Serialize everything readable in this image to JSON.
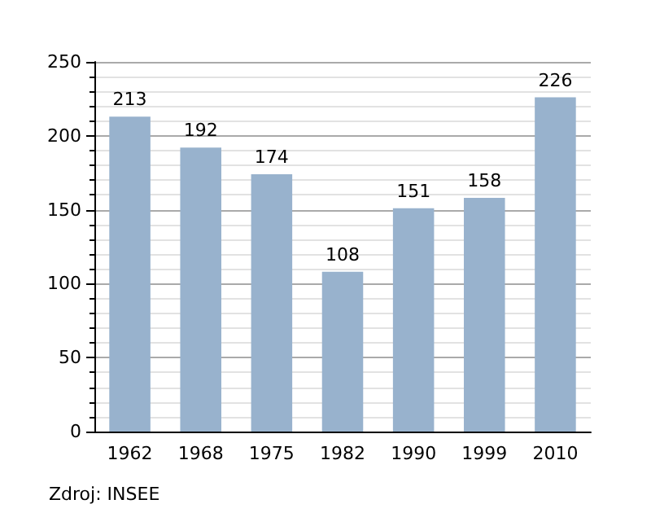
{
  "chart_data": {
    "type": "bar",
    "categories": [
      "1962",
      "1968",
      "1975",
      "1982",
      "1990",
      "1999",
      "2010"
    ],
    "values": [
      213,
      192,
      174,
      108,
      151,
      158,
      226
    ],
    "color": "#98b2cd",
    "ylim": [
      0,
      250
    ],
    "yticks": [
      0,
      50,
      100,
      150,
      200,
      250
    ],
    "grid": "y",
    "data_labels": true,
    "annotations": [
      "Zdroj: INSEE"
    ]
  }
}
